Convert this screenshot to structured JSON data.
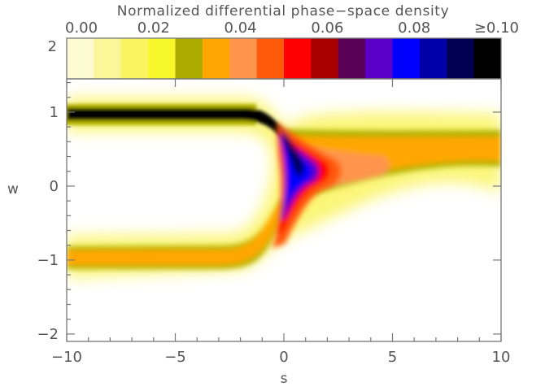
{
  "chart_data": {
    "type": "heatmap",
    "colorbar": {
      "title": "Normalized differential phase−space density",
      "tick_labels": [
        "0.00",
        "0.02",
        "0.04",
        "0.06",
        "0.08",
        "≥0.10"
      ],
      "left_label": "2",
      "range": [
        0.0,
        0.1
      ],
      "colors": [
        "#fdfbd2",
        "#fbf799",
        "#fbf461",
        "#f7f72a",
        "#abab00",
        "#ffa700",
        "#ff944d",
        "#ff5a0a",
        "#ff0000",
        "#a80000",
        "#5a0056",
        "#5a00c8",
        "#0000ff",
        "#0000a8",
        "#000050",
        "#000000"
      ]
    },
    "xlabel": "s",
    "ylabel": "w",
    "xlim": [
      -10,
      10
    ],
    "ylim": [
      -2.1,
      1.45
    ],
    "x_ticks": [
      "−10",
      "−5",
      "0",
      "5",
      "10"
    ],
    "y_ticks": [
      "−2",
      "−1",
      "0",
      "1"
    ],
    "grid": false,
    "bands": [
      {
        "name": "upper incoming",
        "from_s": -10,
        "to_s": -1.5,
        "w": 1.0,
        "density": "≥0.10"
      },
      {
        "name": "lower incoming",
        "from_s": -10,
        "to_s": -1.5,
        "w": -0.95,
        "density": 0.045
      },
      {
        "name": "outgoing",
        "from_s": 2.5,
        "to_s": 10,
        "w_start": 0.5,
        "w_end": 0.55,
        "density": 0.045
      },
      {
        "name": "turning core",
        "s": 0.7,
        "w": 0.3,
        "density": 0.09
      }
    ]
  }
}
